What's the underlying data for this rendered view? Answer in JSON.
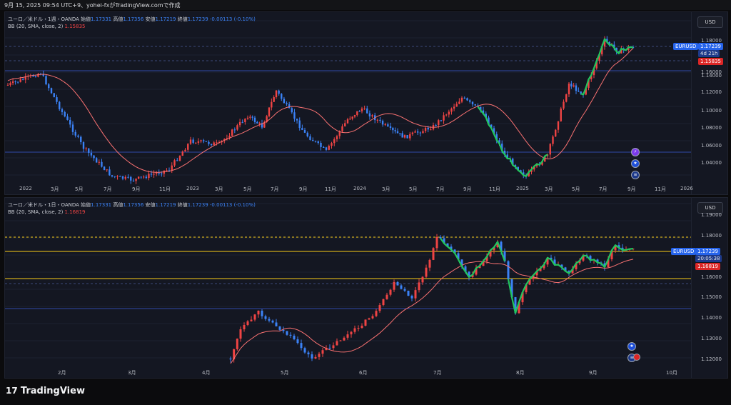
{
  "header": {
    "text": "9月 15, 2025 09:54 UTC+9、yohei-fxがTradingView.comで作成"
  },
  "brand": {
    "name": "TradingView"
  },
  "colors": {
    "bull": "#ef4444",
    "bear": "#3b82f6",
    "bb": "#f87171",
    "accent": "#2563eb",
    "green": "#22c55e",
    "yellow": "#facc15"
  },
  "panels": [
    {
      "legend": {
        "symbol": "ユーロ／米ドル・1週・OANDA",
        "o_label": "始値",
        "o": "1.17331",
        "h_label": "高値",
        "h": "1.17356",
        "l_label": "安値",
        "l": "1.17219",
        "c_label": "終値",
        "c": "1.17239",
        "chg": "-0.00113 (-0.10%)"
      },
      "bb": {
        "label": "BB (20, SMA, close, 2)",
        "value": "1.15835"
      },
      "currency": "USD",
      "price_ticks": [
        "1.18000",
        "1.16000",
        "1.14000",
        "1.12000",
        "1.10000",
        "1.08000",
        "1.06000",
        "1.04000"
      ],
      "tags": {
        "symbol": "EURUSD",
        "price": "1.17239",
        "countdown": "4d 21h",
        "bb": "1.15835"
      },
      "x_labels": [
        "2022",
        "3月",
        "5月",
        "7月",
        "9月",
        "11月",
        "2023",
        "3月",
        "5月",
        "7月",
        "9月",
        "11月",
        "2024",
        "3月",
        "5月",
        "7月",
        "9月",
        "11月",
        "2025",
        "3月",
        "5月",
        "7月",
        "9月",
        "11月",
        "2026"
      ]
    },
    {
      "legend": {
        "symbol": "ユーロ／米ドル・1日・OANDA",
        "o_label": "始値",
        "o": "1.17331",
        "h_label": "高値",
        "h": "1.17356",
        "l_label": "安値",
        "l": "1.17219",
        "c_label": "終値",
        "c": "1.17239",
        "chg": "-0.00113 (-0.10%)"
      },
      "bb": {
        "label": "BB (20, SMA, close, 2)",
        "value": "1.16819"
      },
      "currency": "USD",
      "price_ticks": [
        "1.19000",
        "1.18000",
        "1.17000",
        "1.16000",
        "1.15000",
        "1.14000",
        "1.13000",
        "1.12000"
      ],
      "tags": {
        "symbol": "EURUSD",
        "price": "1.17239",
        "countdown": "20:05:38",
        "bb": "1.16819"
      },
      "x_labels": [
        "2月",
        "3月",
        "4月",
        "5月",
        "6月",
        "7月",
        "8月",
        "9月",
        "10月"
      ]
    }
  ]
}
